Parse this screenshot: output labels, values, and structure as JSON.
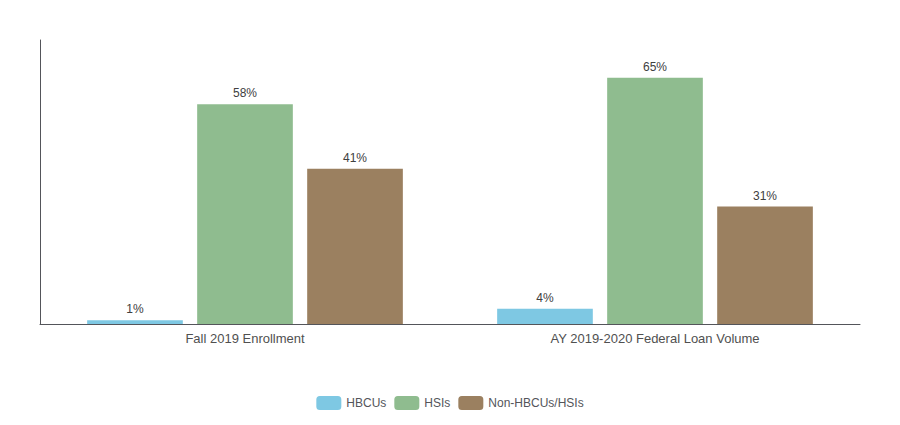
{
  "chart_data": {
    "type": "bar",
    "categories": [
      "Fall 2019 Enrollment",
      "AY 2019-2020 Federal Loan Volume"
    ],
    "series": [
      {
        "name": "HBCUs",
        "color": "#7ec8e3",
        "values": [
          1,
          4
        ],
        "value_labels": [
          "1%",
          "4%"
        ]
      },
      {
        "name": "HSIs",
        "color": "#8fbc8f",
        "values": [
          58,
          65
        ],
        "value_labels": [
          "58%",
          "65%"
        ]
      },
      {
        "name": "Non-HBCUs/HSIs",
        "color": "#9b8060",
        "values": [
          41,
          31
        ],
        "value_labels": [
          "41%",
          "31%"
        ]
      }
    ],
    "ylim": [
      0,
      75
    ],
    "grid": false,
    "legend": "bottom",
    "data_labels": true,
    "tick_labels": "x"
  }
}
